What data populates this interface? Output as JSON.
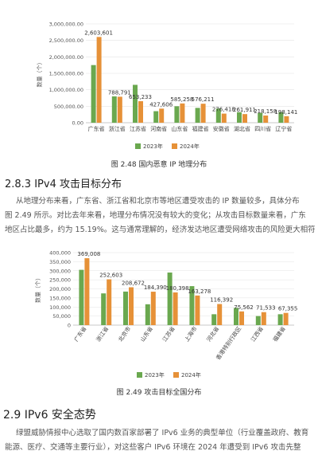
{
  "figure1": {
    "caption": "图 2.48  国内恶意 IP 地理分布",
    "chart_data": {
      "type": "bar",
      "ylabel": "数量（个）",
      "ylim": [
        0,
        3000000
      ],
      "yticks": [
        "0.00",
        "500,000.00",
        "1,000,000.00",
        "1,500,000.00",
        "2,000,000.00",
        "2,500,000.00",
        "3,000,000.00"
      ],
      "categories": [
        "广东省",
        "浙江省",
        "江苏省",
        "河南省",
        "山东省",
        "福建省",
        "安徽省",
        "湖北省",
        "四川省",
        "辽宁省"
      ],
      "series": [
        {
          "name": "2023年",
          "values": [
            1750000,
            800000,
            1150000,
            350000,
            500000,
            450000,
            430000,
            320000,
            300000,
            320000
          ]
        },
        {
          "name": "2024年",
          "values": [
            2603601,
            788791,
            653233,
            427606,
            585258,
            576211,
            276418,
            261911,
            218158,
            198141
          ]
        }
      ],
      "data_labels": [
        "2,603,601",
        "788,791",
        "653,233",
        "427,606",
        "585,258",
        "576,211",
        "276,418",
        "261,911",
        "218,158",
        "198,141"
      ],
      "legend": "bottom",
      "colors": {
        "2023": "#6aa84f",
        "2024": "#e69138"
      }
    }
  },
  "section_283": {
    "title": "2.8.3 IPv4 攻击目标分布",
    "lines": [
      "从地理分布来看，广东省、浙江省和北京市等地区遭受攻击的 IP 数量较多，具体分布",
      "图 2.49 所示。对比去年来看，地理分布情况没有较大的变化；从攻击目标数量来看，广东",
      "地区占比最多，约为 15.19%。这与通常理解的，经济发达地区遭受网络攻击的风险更大相符"
    ]
  },
  "figure2": {
    "caption": "图 2.49  攻击目标全国分布",
    "chart_data": {
      "type": "bar",
      "ylabel": "数量（个）",
      "ylim": [
        0,
        400000
      ],
      "yticks": [
        "0",
        "50,000",
        "100,000",
        "150,000",
        "200,000",
        "250,000",
        "300,000",
        "350,000",
        "400,000"
      ],
      "categories": [
        "广东省",
        "浙江省",
        "北京市",
        "山东省",
        "江苏省",
        "上海市",
        "河北省",
        "香港特别行政区",
        "江西省",
        "福建省"
      ],
      "series": [
        {
          "name": "2023年",
          "values": [
            305000,
            175000,
            185000,
            115000,
            290000,
            215000,
            60000,
            95000,
            50000,
            60000
          ]
        },
        {
          "name": "2024年",
          "values": [
            369008,
            252603,
            208672,
            184390,
            180398,
            163278,
            116392,
            75562,
            71533,
            67355
          ]
        }
      ],
      "data_labels": [
        "369,008",
        "252,603",
        "208,672",
        "184,390",
        "180,398",
        "163,278",
        "116,392",
        "75,562",
        "71,533",
        "67,355"
      ],
      "legend": "bottom",
      "colors": {
        "2023": "#6aa84f",
        "2024": "#e69138"
      }
    }
  },
  "section_29": {
    "title": "2.9 IPv6 安全态势",
    "lines": [
      "绿盟威胁情报中心选取了国内数百家部署了 IPv6 业务的典型单位（行业覆盖政府、教育",
      "能源、医疗、交通等主要行业），对这些客户 IPv6 环境在 2024 年遭受到 IPv6 攻击先整"
    ]
  }
}
